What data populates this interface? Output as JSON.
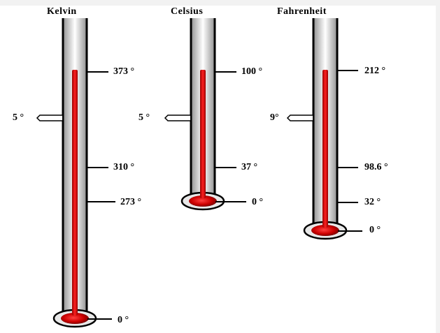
{
  "thermometers": [
    {
      "name": "Kelvin",
      "marker_label": "5 °",
      "ticks": [
        {
          "label": "373 °"
        },
        {
          "label": "310 °"
        },
        {
          "label": "273 °"
        },
        {
          "label": "0 °"
        }
      ]
    },
    {
      "name": "Celsius",
      "marker_label": "5 °",
      "ticks": [
        {
          "label": "100 °"
        },
        {
          "label": "37 °"
        },
        {
          "label": "0 °"
        }
      ]
    },
    {
      "name": "Fahrenheit",
      "marker_label": "9°",
      "ticks": [
        {
          "label": "212 °"
        },
        {
          "label": "98.6 °"
        },
        {
          "label": "32 °"
        },
        {
          "label": "0 °"
        }
      ]
    }
  ],
  "colors": {
    "mercury": "#cc0000",
    "tube_outline": "#000000",
    "tube_shade": "#9a9a9a",
    "tube_light": "#ffffff"
  }
}
